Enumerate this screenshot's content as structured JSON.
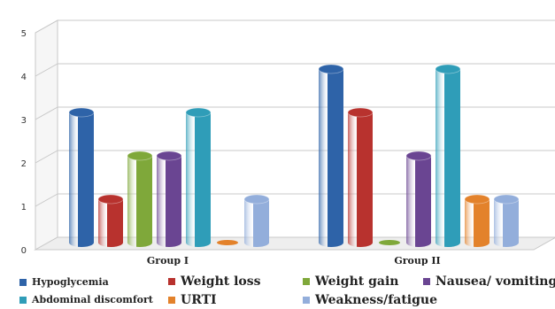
{
  "chart_data": {
    "type": "bar",
    "title": "",
    "xlabel": "",
    "ylabel": "",
    "ylim": [
      0,
      5
    ],
    "yticks": [
      0,
      1,
      2,
      3,
      4,
      5
    ],
    "categories": [
      "Group I",
      "Group II"
    ],
    "grid": true,
    "legend_position": "bottom",
    "series": [
      {
        "name": "Hypoglycemia",
        "color": "#2e63a8",
        "values": [
          3,
          4
        ]
      },
      {
        "name": "Weight loss",
        "color": "#b8322e",
        "values": [
          1,
          3
        ]
      },
      {
        "name": "Weight gain",
        "color": "#7fa83a",
        "values": [
          2,
          0
        ]
      },
      {
        "name": "Nausea/ vomiting",
        "color": "#6a4592",
        "values": [
          2,
          2
        ]
      },
      {
        "name": "Abdominal discomfort",
        "color": "#2f9db8",
        "values": [
          3,
          4
        ]
      },
      {
        "name": "URTI",
        "color": "#e3822b",
        "values": [
          0,
          1
        ]
      },
      {
        "name": "Weakness/fatigue",
        "color": "#93aedb",
        "values": [
          1,
          1
        ]
      }
    ]
  }
}
